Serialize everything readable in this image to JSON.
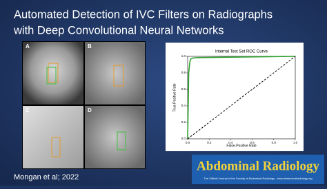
{
  "title_lines": [
    "Automated Detection of IVC Filters on Radiographs",
    "with Deep Convolutional Neural Networks"
  ],
  "panels": [
    "A",
    "B",
    "C",
    "D"
  ],
  "citation": "Mongan et al; 2022",
  "journal": {
    "name": "Abdominal Radiology",
    "subtitle": "The Official Journal of the Society of Abdominal Radiology · www.abdominalradiology.org"
  },
  "chart_data": {
    "type": "line",
    "title": "Internal Test Set ROC Curve",
    "x_label": "False-Positive Rate",
    "y_label": "True-Positive Rate",
    "xlim": [
      0,
      1
    ],
    "ylim": [
      0,
      1
    ],
    "xticks": [
      {
        "value": 0,
        "label": "0.0"
      },
      0.2,
      0.4,
      0.6,
      0.8,
      {
        "value": 1,
        "label": "1.0"
      }
    ],
    "yticks": [
      {
        "value": 0,
        "label": "0.0"
      },
      0.2,
      0.4,
      0.6,
      0.8,
      {
        "value": 1,
        "label": "1.0"
      }
    ],
    "series": [
      {
        "color": "#2ca02c",
        "style": "solid",
        "x": [
          0,
          0.01,
          0.02,
          0.03,
          0.05,
          0.1,
          1
        ],
        "values": [
          0,
          0.8,
          0.93,
          0.97,
          0.98,
          0.985,
          1
        ]
      },
      {
        "color": "#000000",
        "style": "dashed",
        "x": [
          0,
          1
        ],
        "values": [
          0,
          1
        ]
      }
    ]
  }
}
